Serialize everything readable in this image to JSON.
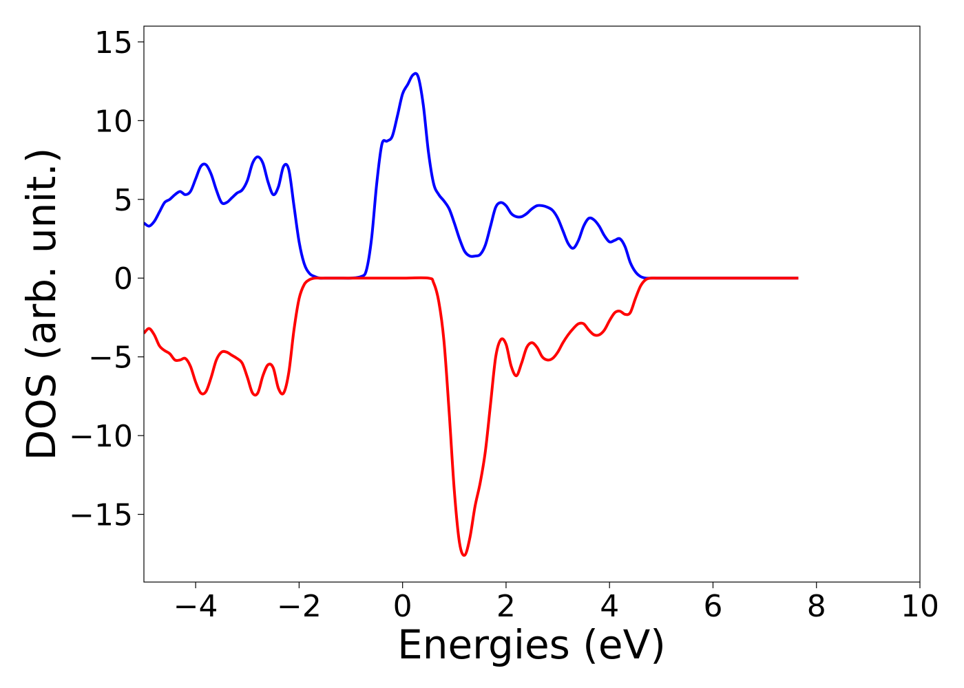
{
  "chart_data": {
    "type": "line",
    "title": "",
    "xlabel": "Energies (eV)",
    "ylabel": "DOS (arb. unit.)",
    "xlim": [
      -5,
      10
    ],
    "ylim": [
      -19.3,
      16.0
    ],
    "xticks": [
      -4,
      -2,
      0,
      2,
      4,
      6,
      8,
      10
    ],
    "xtick_labels": [
      "−4",
      "−2",
      "0",
      "2",
      "4",
      "6",
      "8",
      "10"
    ],
    "yticks": [
      15,
      10,
      5,
      0,
      -5,
      -10,
      -15
    ],
    "ytick_labels": [
      "15",
      "10",
      "5",
      "0",
      "−5",
      "−10",
      "−15"
    ],
    "grid": false,
    "legend": "none",
    "series": [
      {
        "color": "#0000ff",
        "x": [
          -5.0,
          -4.9,
          -4.8,
          -4.7,
          -4.6,
          -4.5,
          -4.4,
          -4.3,
          -4.2,
          -4.1,
          -4.0,
          -3.9,
          -3.8,
          -3.7,
          -3.6,
          -3.5,
          -3.4,
          -3.3,
          -3.2,
          -3.1,
          -3.0,
          -2.9,
          -2.8,
          -2.7,
          -2.6,
          -2.5,
          -2.4,
          -2.3,
          -2.2,
          -2.1,
          -2.0,
          -1.9,
          -1.8,
          -1.7,
          -1.6,
          -1.5,
          -1.4,
          -1.3,
          -1.2,
          -1.0,
          -0.8,
          -0.7,
          -0.6,
          -0.5,
          -0.4,
          -0.3,
          -0.2,
          -0.1,
          0.0,
          0.1,
          0.2,
          0.3,
          0.4,
          0.5,
          0.6,
          0.7,
          0.8,
          0.9,
          1.0,
          1.1,
          1.2,
          1.3,
          1.4,
          1.5,
          1.6,
          1.7,
          1.8,
          1.9,
          2.0,
          2.1,
          2.2,
          2.3,
          2.4,
          2.5,
          2.6,
          2.7,
          2.8,
          2.9,
          3.0,
          3.1,
          3.2,
          3.3,
          3.4,
          3.5,
          3.6,
          3.7,
          3.8,
          3.9,
          4.0,
          4.1,
          4.2,
          4.3,
          4.4,
          4.5,
          4.6,
          4.7,
          4.8,
          4.9,
          5.0,
          5.1,
          5.2,
          5.3,
          5.4,
          5.6,
          6.0,
          7.0,
          7.65
        ],
        "y": [
          3.5,
          3.3,
          3.6,
          4.2,
          4.8,
          5.0,
          5.3,
          5.5,
          5.3,
          5.5,
          6.3,
          7.1,
          7.2,
          6.6,
          5.6,
          4.8,
          4.8,
          5.1,
          5.4,
          5.6,
          6.2,
          7.3,
          7.7,
          7.3,
          6.1,
          5.3,
          5.8,
          7.1,
          6.9,
          4.6,
          2.3,
          0.9,
          0.3,
          0.1,
          0.0,
          0.0,
          0.0,
          0.0,
          0.0,
          0.0,
          0.1,
          0.5,
          2.5,
          6.0,
          8.5,
          8.7,
          9.0,
          10.3,
          11.7,
          12.3,
          12.9,
          12.8,
          11.0,
          8.0,
          6.0,
          5.3,
          4.9,
          4.4,
          3.5,
          2.5,
          1.7,
          1.4,
          1.4,
          1.5,
          2.1,
          3.3,
          4.5,
          4.8,
          4.6,
          4.1,
          3.9,
          3.9,
          4.1,
          4.4,
          4.6,
          4.6,
          4.5,
          4.3,
          3.8,
          3.0,
          2.2,
          1.9,
          2.4,
          3.3,
          3.8,
          3.7,
          3.3,
          2.7,
          2.3,
          2.4,
          2.5,
          2.0,
          1.0,
          0.4,
          0.1,
          0.0,
          0.0,
          0.0,
          0.0,
          0.0,
          0.0,
          0.0,
          0.0,
          0.0,
          0.0,
          0.0,
          0.0
        ]
      },
      {
        "color": "#ff0000",
        "x": [
          -5.0,
          -4.9,
          -4.8,
          -4.7,
          -4.6,
          -4.5,
          -4.4,
          -4.3,
          -4.2,
          -4.1,
          -4.0,
          -3.9,
          -3.8,
          -3.7,
          -3.6,
          -3.5,
          -3.4,
          -3.3,
          -3.2,
          -3.1,
          -3.0,
          -2.9,
          -2.8,
          -2.7,
          -2.6,
          -2.5,
          -2.4,
          -2.3,
          -2.2,
          -2.1,
          -2.0,
          -1.9,
          -1.8,
          -1.7,
          -1.6,
          -1.5,
          -1.4,
          -1.3,
          -1.2,
          -1.0,
          -0.5,
          0.0,
          0.5,
          0.6,
          0.7,
          0.8,
          0.9,
          1.0,
          1.1,
          1.2,
          1.3,
          1.4,
          1.5,
          1.6,
          1.7,
          1.8,
          1.9,
          2.0,
          2.1,
          2.2,
          2.3,
          2.4,
          2.5,
          2.6,
          2.7,
          2.8,
          2.9,
          3.0,
          3.1,
          3.2,
          3.3,
          3.4,
          3.5,
          3.6,
          3.7,
          3.8,
          3.9,
          4.0,
          4.1,
          4.2,
          4.3,
          4.4,
          4.5,
          4.6,
          4.7,
          4.8,
          4.9,
          5.0,
          5.1,
          5.2,
          5.3,
          5.4,
          5.6,
          6.0,
          7.0,
          7.65
        ],
        "y": [
          -3.5,
          -3.2,
          -3.6,
          -4.3,
          -4.6,
          -4.8,
          -5.2,
          -5.2,
          -5.1,
          -5.6,
          -6.6,
          -7.3,
          -7.2,
          -6.3,
          -5.2,
          -4.7,
          -4.7,
          -4.9,
          -5.1,
          -5.4,
          -6.3,
          -7.3,
          -7.3,
          -6.2,
          -5.5,
          -5.7,
          -7.0,
          -7.3,
          -6.0,
          -3.3,
          -1.3,
          -0.4,
          -0.1,
          0.0,
          0.0,
          0.0,
          0.0,
          0.0,
          0.0,
          0.0,
          0.0,
          0.0,
          0.0,
          -0.3,
          -1.5,
          -4.0,
          -8.5,
          -13.5,
          -16.8,
          -17.6,
          -16.5,
          -14.5,
          -13.0,
          -11.0,
          -8.0,
          -5.0,
          -3.9,
          -4.2,
          -5.6,
          -6.2,
          -5.4,
          -4.4,
          -4.1,
          -4.4,
          -5.0,
          -5.2,
          -5.1,
          -4.7,
          -4.1,
          -3.6,
          -3.2,
          -2.9,
          -2.9,
          -3.3,
          -3.6,
          -3.6,
          -3.3,
          -2.7,
          -2.2,
          -2.1,
          -2.3,
          -2.2,
          -1.3,
          -0.5,
          -0.1,
          0.0,
          0.0,
          0.0,
          0.0,
          0.0,
          0.0,
          0.0,
          0.0,
          0.0,
          0.0,
          0.0
        ]
      }
    ]
  }
}
